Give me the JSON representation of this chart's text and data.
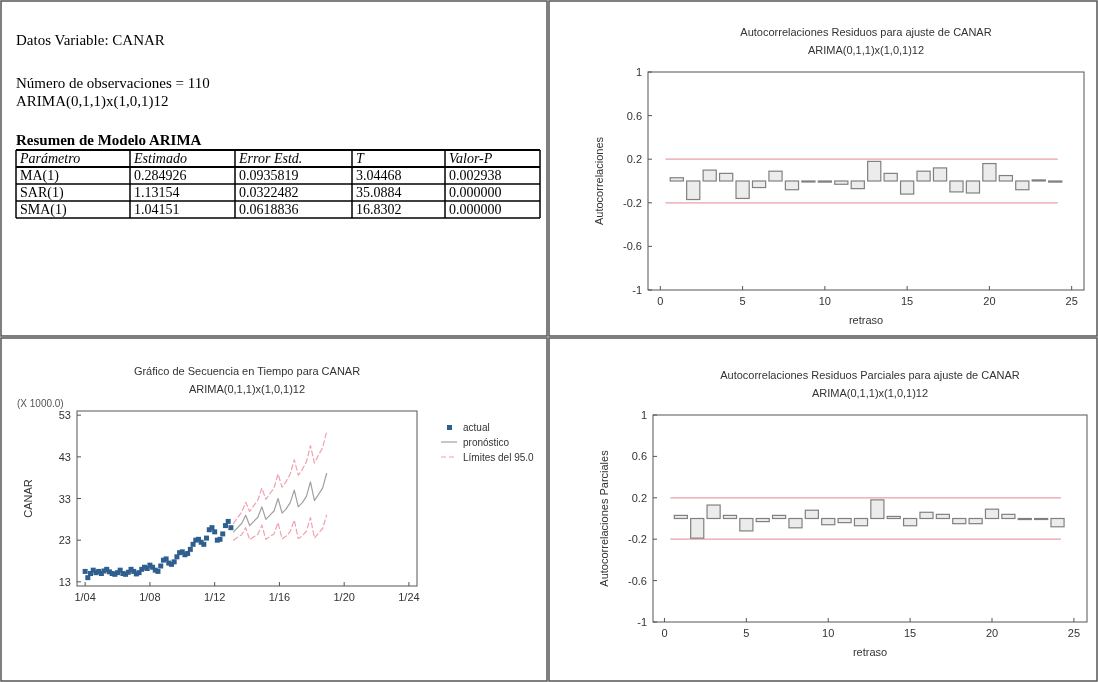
{
  "chart_data": [
    {
      "type": "other",
      "title": "Datos Variable: CANAR",
      "annotations": [
        "Número de observaciones = 110",
        "ARIMA(0,1,1)x(1,0,1)12"
      ],
      "subtitle": "Resumen de Modelo ARIMA",
      "ylabel": "Parámetro",
      "categories": [
        "Estimado",
        "Error Estd.",
        "T",
        "Valor-P"
      ],
      "y_categories": [
        "MA(1)",
        "SAR(1)",
        "SMA(1)"
      ],
      "cell_labels": [
        [
          "0.284926",
          "0.0935819",
          "3.04468",
          "0.002938"
        ],
        [
          "1.13154",
          "0.0322482",
          "35.0884",
          "0.000000"
        ],
        [
          "1.04151",
          "0.0618836",
          "16.8302",
          "0.000000"
        ]
      ]
    },
    {
      "type": "bar",
      "title": "Autocorrelaciones Residuos para ajuste de CANAR",
      "subtitle": "ARIMA(0,1,1)x(1,0,1)12",
      "xlabel": "retraso",
      "ylabel": "Autocorrelaciones",
      "color": "#808080",
      "x": [
        1,
        2,
        3,
        4,
        5,
        6,
        7,
        8,
        9,
        10,
        11,
        12,
        13,
        14,
        15,
        16,
        17,
        18,
        19,
        20,
        21,
        22,
        23,
        24
      ],
      "values": [
        0.03,
        -0.17,
        0.1,
        0.07,
        -0.16,
        -0.06,
        0.09,
        -0.08,
        0.0,
        -0.01,
        -0.03,
        -0.07,
        0.18,
        0.07,
        -0.12,
        0.09,
        0.12,
        -0.1,
        -0.11,
        0.16,
        0.05,
        -0.08,
        0.01,
        -0.01
      ],
      "xlim": [
        -0.75,
        25.75
      ],
      "xticks": [
        0,
        5,
        10,
        15,
        20,
        25
      ],
      "ylim": [
        -1,
        1
      ],
      "yticks": [
        -1,
        -0.6,
        -0.2,
        0.2,
        0.6,
        1
      ],
      "ref_lines": [
        {
          "axis": "y",
          "value": 0.2,
          "color": "#e8a0a8"
        },
        {
          "axis": "y",
          "value": -0.2,
          "color": "#e8a0a8"
        }
      ]
    },
    {
      "type": "line",
      "title": "Gráfico de Secuencia en Tiempo para CANAR",
      "subtitle": "ARIMA(0,1,1)x(1,0,1)12",
      "ylabel": "CANAR",
      "annotations": [
        "(X 1000.0)"
      ],
      "xlim": [
        "2003-07",
        "2024-07"
      ],
      "xticks": [
        {
          "value": "2004-01",
          "label": "1/04"
        },
        {
          "value": "2008-01",
          "label": "1/08"
        },
        {
          "value": "2012-01",
          "label": "1/12"
        },
        {
          "value": "2016-01",
          "label": "1/16"
        },
        {
          "value": "2020-01",
          "label": "1/20"
        },
        {
          "value": "2024-01",
          "label": "1/24"
        }
      ],
      "ylim": [
        12,
        54
      ],
      "yticks": [
        13,
        23,
        33,
        43,
        53
      ],
      "legend": "right",
      "series": [
        {
          "name": "actual",
          "type": "scatter",
          "marker": "square",
          "color": "#2f5f8f",
          "x": [
            "2004-01",
            "2004-03",
            "2004-05",
            "2004-07",
            "2004-09",
            "2004-11",
            "2005-01",
            "2005-03",
            "2005-05",
            "2005-07",
            "2005-09",
            "2005-11",
            "2006-01",
            "2006-03",
            "2006-05",
            "2006-07",
            "2006-09",
            "2006-11",
            "2007-01",
            "2007-03",
            "2007-05",
            "2007-07",
            "2007-09",
            "2007-11",
            "2008-01",
            "2008-03",
            "2008-05",
            "2008-07",
            "2008-09",
            "2008-11",
            "2009-01",
            "2009-03",
            "2009-05",
            "2009-07",
            "2009-09",
            "2009-11",
            "2010-01",
            "2010-03",
            "2010-05",
            "2010-07",
            "2010-09",
            "2010-11",
            "2011-01",
            "2011-03",
            "2011-05",
            "2011-07",
            "2011-09",
            "2011-11",
            "2012-01",
            "2012-03",
            "2012-05",
            "2012-07",
            "2012-09",
            "2012-11",
            "2013-01"
          ],
          "values": [
            15.5,
            14.0,
            15.0,
            15.8,
            15.2,
            15.5,
            15.0,
            15.6,
            16.0,
            15.4,
            15.0,
            14.8,
            15.2,
            15.8,
            15.0,
            14.8,
            15.3,
            16.0,
            15.5,
            14.9,
            15.2,
            16.0,
            16.5,
            16.2,
            17.0,
            16.5,
            15.8,
            15.5,
            16.8,
            18.2,
            18.5,
            17.5,
            17.2,
            17.8,
            19.0,
            20.0,
            20.2,
            19.5,
            19.8,
            20.8,
            22.0,
            23.0,
            23.2,
            22.5,
            22.0,
            23.5,
            25.5,
            26.0,
            25.0,
            23.0,
            23.2,
            24.5,
            26.5,
            27.5,
            26.0
          ]
        },
        {
          "name": "pronóstico",
          "type": "line",
          "line_style": "solid",
          "color": "#a0a0a0",
          "x": [
            "2013-03",
            "2013-06",
            "2013-09",
            "2013-12",
            "2014-03",
            "2014-06",
            "2014-09",
            "2014-12",
            "2015-03",
            "2015-06",
            "2015-09",
            "2015-12",
            "2016-03",
            "2016-06",
            "2016-09",
            "2016-12",
            "2017-03",
            "2017-06",
            "2017-09",
            "2017-12",
            "2018-03",
            "2018-06",
            "2018-09",
            "2018-12"
          ],
          "values": [
            25,
            26,
            27,
            29,
            26.5,
            27.5,
            28.5,
            31,
            28,
            29,
            30,
            33,
            29.5,
            30.5,
            32,
            35,
            31,
            32,
            33.5,
            37,
            32.5,
            34,
            35.5,
            39
          ]
        },
        {
          "name": "Límites del 95.0",
          "type": "line",
          "line_style": "dashed",
          "color": "#f0a0b0",
          "x": [
            "2013-03",
            "2013-06",
            "2013-09",
            "2013-12",
            "2014-03",
            "2014-06",
            "2014-09",
            "2014-12",
            "2015-03",
            "2015-06",
            "2015-09",
            "2015-12",
            "2016-03",
            "2016-06",
            "2016-09",
            "2016-12",
            "2017-03",
            "2017-06",
            "2017-09",
            "2017-12",
            "2018-03",
            "2018-06",
            "2018-09",
            "2018-12"
          ],
          "values": [
            27,
            28.4,
            29.7,
            32.1,
            29.9,
            31.3,
            32.6,
            35.5,
            32.8,
            34.2,
            35.5,
            38.9,
            35.7,
            37.1,
            38.9,
            42.3,
            38.6,
            40,
            41.8,
            45.7,
            41.5,
            43.4,
            45.2,
            49
          ]
        },
        {
          "type": "line",
          "line_style": "dashed",
          "color": "#f0a0b0",
          "x": [
            "2013-03",
            "2013-06",
            "2013-09",
            "2013-12",
            "2014-03",
            "2014-06",
            "2014-09",
            "2014-12",
            "2015-03",
            "2015-06",
            "2015-09",
            "2015-12",
            "2016-03",
            "2016-06",
            "2016-09",
            "2016-12",
            "2017-03",
            "2017-06",
            "2017-09",
            "2017-12",
            "2018-03",
            "2018-06",
            "2018-09",
            "2018-12"
          ],
          "values": [
            23,
            23.7,
            24.3,
            26,
            23.1,
            23.8,
            24.4,
            26.6,
            23.2,
            23.9,
            24.5,
            27.2,
            23.3,
            24,
            25.1,
            27.8,
            23.4,
            24,
            25.2,
            28.4,
            23.5,
            24.7,
            25.8,
            29
          ]
        }
      ]
    },
    {
      "type": "bar",
      "title": "Autocorrelaciones Residuos Parciales para ajuste de CANAR",
      "subtitle": "ARIMA(0,1,1)x(1,0,1)12",
      "xlabel": "retraso",
      "ylabel": "Autocorrelaciones Parciales",
      "color": "#808080",
      "x": [
        1,
        2,
        3,
        4,
        5,
        6,
        7,
        8,
        9,
        10,
        11,
        12,
        13,
        14,
        15,
        16,
        17,
        18,
        19,
        20,
        21,
        22,
        23,
        24
      ],
      "values": [
        0.03,
        -0.19,
        0.13,
        0.03,
        -0.12,
        -0.03,
        0.03,
        -0.09,
        0.08,
        -0.06,
        -0.04,
        -0.07,
        0.18,
        0.02,
        -0.07,
        0.06,
        0.04,
        -0.05,
        -0.05,
        0.09,
        0.04,
        -0.01,
        0.0,
        -0.08
      ],
      "xlim": [
        -0.7,
        25.8
      ],
      "xticks": [
        0,
        5,
        10,
        15,
        20,
        25
      ],
      "ylim": [
        -1,
        1
      ],
      "yticks": [
        -1,
        -0.6,
        -0.2,
        0.2,
        0.6,
        1
      ],
      "ref_lines": [
        {
          "axis": "y",
          "value": 0.2,
          "color": "#e8a0a8"
        },
        {
          "axis": "y",
          "value": -0.2,
          "color": "#e8a0a8"
        }
      ]
    }
  ]
}
